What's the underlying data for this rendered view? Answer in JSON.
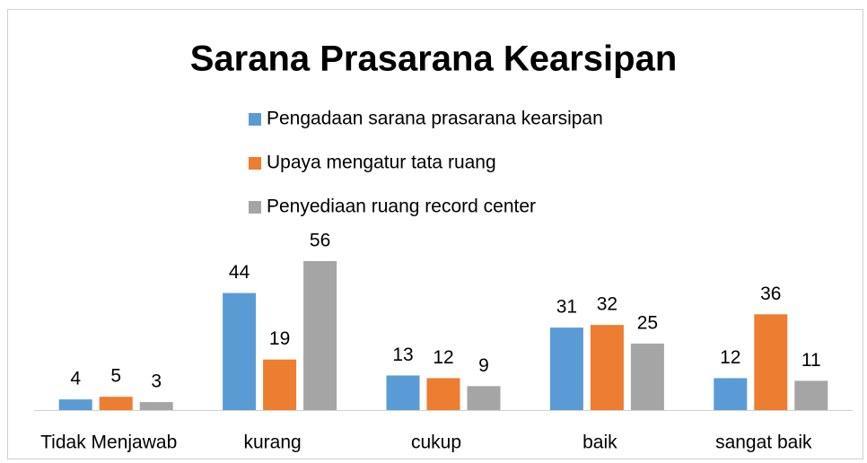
{
  "chart_data": {
    "type": "bar",
    "title": "Sarana Prasarana Kearsipan",
    "categories": [
      "Tidak Menjawab",
      "kurang",
      "cukup",
      "baik",
      "sangat baik"
    ],
    "series": [
      {
        "name": "Pengadaan sarana prasarana kearsipan",
        "color": "#5b9bd5",
        "values": [
          4,
          44,
          13,
          31,
          12
        ]
      },
      {
        "name": "Upaya mengatur tata ruang",
        "color": "#ed7d31",
        "values": [
          5,
          19,
          12,
          32,
          36
        ]
      },
      {
        "name": "Penyediaan ruang record center",
        "color": "#a5a5a5",
        "values": [
          3,
          56,
          9,
          25,
          11
        ]
      }
    ],
    "legend": "top"
  }
}
